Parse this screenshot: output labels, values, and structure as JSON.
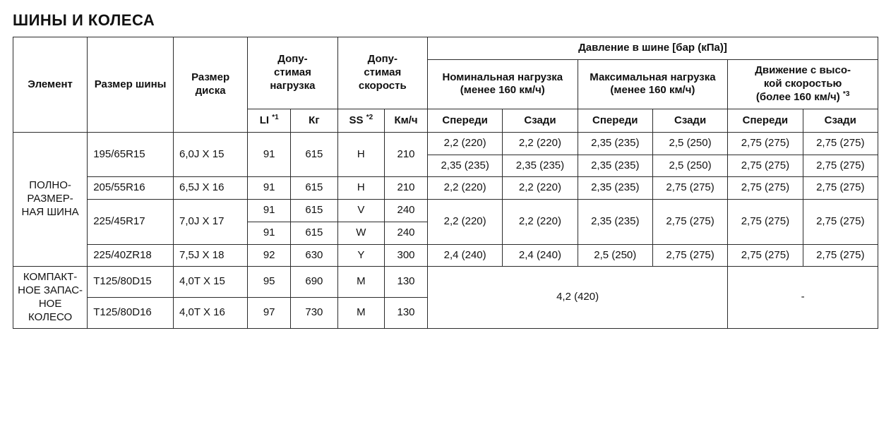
{
  "title": "ШИНЫ И КОЛЕСА",
  "hdr": {
    "element": "Элемент",
    "tire_size": "Размер шины",
    "rim_size": "Размер диска",
    "load": "Допу-\nстимая нагрузка",
    "speed": "Допу-\nстимая скорость",
    "pressure": "Давление в шине [бар (кПа)]",
    "nominal": "Номинальная нагрузка",
    "nominal_sub": "(менее 160  км/ч)",
    "max": "Максимальная нагрузка",
    "max_sub": "(менее 160  км/ч)",
    "hispeed": "Движение с высо-\nкой скоростью",
    "hispeed_sub": "(более 160  км/ч) ",
    "hispeed_note": "*3",
    "li": "LI ",
    "li_note": "*1",
    "kg": "Кг",
    "ss": "SS ",
    "ss_note": "*2",
    "kmh": "Км/ч",
    "front": "Спереди",
    "rear": "Сзади"
  },
  "cat": {
    "fullsize": "ПОЛНО-\nРАЗМЕР-\nНАЯ ШИНА",
    "spare": "КОМПАКТ-\nНОЕ ЗАПАС-\nНОЕ КОЛЕСО"
  },
  "rows": {
    "r1": {
      "tire": "195/65R15",
      "rim": "6,0J Х 15",
      "li": "91",
      "kg": "615",
      "ss": "H",
      "kmh": "210",
      "nf": "2,2 (220)",
      "nr": "2,2 (220)",
      "mf": "2,35 (235)",
      "mr": "2,5 (250)",
      "hf": "2,75 (275)",
      "hr": "2,75 (275)"
    },
    "r1b": {
      "nf": "2,35 (235)",
      "nr": "2,35 (235)",
      "mf": "2,35 (235)",
      "mr": "2,5 (250)",
      "hf": "2,75 (275)",
      "hr": "2,75 (275)"
    },
    "r2": {
      "tire": "205/55R16",
      "rim": "6,5J Х 16",
      "li": "91",
      "kg": "615",
      "ss": "H",
      "kmh": "210",
      "nf": "2,2 (220)",
      "nr": "2,2 (220)",
      "mf": "2,35 (235)",
      "mr": "2,75 (275)",
      "hf": "2,75 (275)",
      "hr": "2,75 (275)"
    },
    "r3a": {
      "tire": "225/45R17",
      "rim": "7,0J Х 17",
      "li": "91",
      "kg": "615",
      "ss": "V",
      "kmh": "240"
    },
    "r3b": {
      "li": "91",
      "kg": "615",
      "ss": "W",
      "kmh": "240",
      "nf": "2,2 (220)",
      "nr": "2,2 (220)",
      "mf": "2,35 (235)",
      "mr": "2,75 (275)",
      "hf": "2,75 (275)",
      "hr": "2,75 (275)"
    },
    "r4": {
      "tire": "225/40ZR18",
      "rim": "7,5J Х 18",
      "li": "92",
      "kg": "630",
      "ss": "Y",
      "kmh": "300",
      "nf": "2,4 (240)",
      "nr": "2,4 (240)",
      "mf": "2,5 (250)",
      "mr": "2,75 (275)",
      "hf": "2,75 (275)",
      "hr": "2,75 (275)"
    },
    "s1": {
      "tire": "T125/80D15",
      "rim": "4,0T Х 15",
      "li": "95",
      "kg": "690",
      "ss": "M",
      "kmh": "130"
    },
    "s2": {
      "tire": "T125/80D16",
      "rim": "4,0T Х 16",
      "li": "97",
      "kg": "730",
      "ss": "M",
      "kmh": "130"
    },
    "spare_pressure": "4,2 (420)",
    "spare_hispeed": "-"
  },
  "style": {
    "border_color": "#2b2b2b",
    "font_family": "Arial",
    "title_fontsize_pt": 17,
    "cell_fontsize_pt": 11
  }
}
